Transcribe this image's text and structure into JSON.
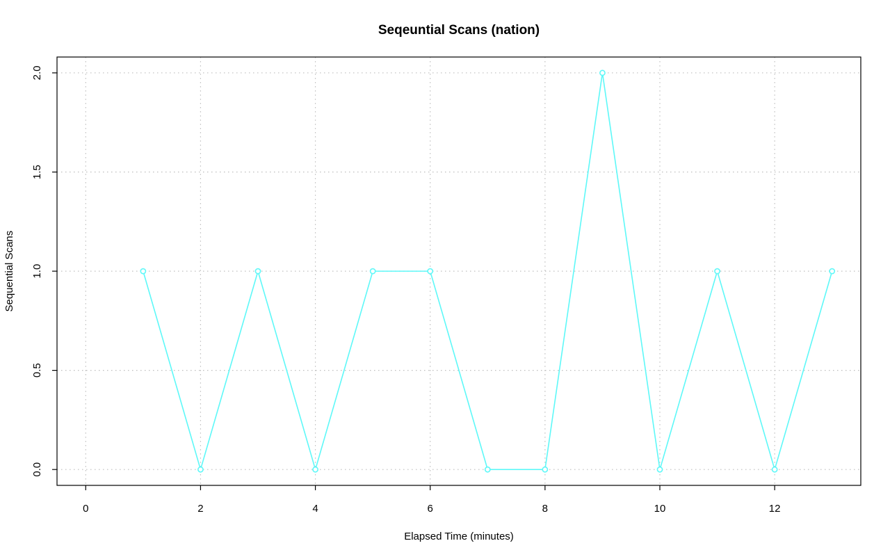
{
  "chart_data": {
    "type": "line",
    "title": "Seqeuntial Scans (nation)",
    "xlabel": "Elapsed Time (minutes)",
    "ylabel": "Sequential Scans",
    "xlim": [
      -0.5,
      13.5
    ],
    "ylim": [
      -0.08,
      2.08
    ],
    "x_ticks": [
      0,
      2,
      4,
      6,
      8,
      10,
      12
    ],
    "x_tick_labels": [
      "0",
      "2",
      "4",
      "6",
      "8",
      "10",
      "12"
    ],
    "y_ticks": [
      0,
      0.5,
      1,
      1.5,
      2
    ],
    "y_tick_labels": [
      "0.0",
      "0.5",
      "1.0",
      "1.5",
      "2.0"
    ],
    "grid": true,
    "series": [
      {
        "color": "#5ef8f8",
        "x": [
          1,
          2,
          3,
          4,
          5,
          6,
          7,
          8,
          9,
          10,
          11,
          12,
          13
        ],
        "y": [
          1,
          0,
          1,
          0,
          1,
          1,
          0,
          0,
          2,
          0,
          1,
          0,
          1
        ]
      }
    ]
  }
}
